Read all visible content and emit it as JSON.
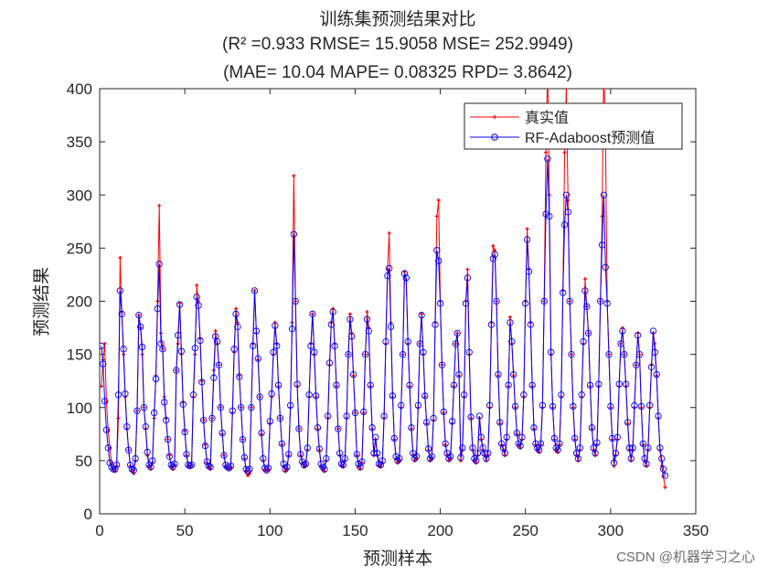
{
  "chart_data": {
    "type": "line",
    "title": [
      "训练集预测结果对比",
      "(R² =0.933 RMSE= 15.9058 MSE= 252.9949)",
      "(MAE= 10.04 MAPE= 0.08325 RPD= 3.8642)"
    ],
    "xlabel": "预测样本",
    "ylabel": "预测结果",
    "xlim": [
      0,
      350
    ],
    "ylim": [
      0,
      400
    ],
    "xticks": [
      0,
      50,
      100,
      150,
      200,
      250,
      300,
      350
    ],
    "yticks": [
      0,
      50,
      100,
      150,
      200,
      250,
      300,
      350,
      400
    ],
    "grid": false,
    "legend_position": "top-right",
    "series": [
      {
        "name": "真实值",
        "color": "#ff0000",
        "marker": "+",
        "values": [
          120,
          145,
          160,
          105,
          78,
          62,
          48,
          42,
          40,
          45,
          90,
          241,
          190,
          150,
          110,
          80,
          60,
          45,
          40,
          38,
          50,
          97,
          187,
          175,
          150,
          100,
          80,
          55,
          45,
          42,
          48,
          90,
          130,
          200,
          290,
          170,
          155,
          110,
          90,
          70,
          55,
          45,
          42,
          46,
          135,
          160,
          198,
          150,
          105,
          78,
          55,
          45,
          44,
          46,
          110,
          150,
          215,
          200,
          165,
          125,
          88,
          65,
          48,
          44,
          42,
          90,
          135,
          172,
          160,
          140,
          100,
          75,
          55,
          45,
          43,
          42,
          44,
          95,
          152,
          193,
          180,
          130,
          100,
          70,
          52,
          40,
          36,
          38,
          100,
          160,
          210,
          170,
          145,
          110,
          75,
          50,
          42,
          40,
          42,
          85,
          110,
          150,
          180,
          160,
          120,
          90,
          65,
          45,
          40,
          42,
          55,
          100,
          180,
          318,
          200,
          120,
          80,
          55,
          48,
          44,
          45,
          60,
          110,
          160,
          188,
          150,
          110,
          80,
          60,
          45,
          42,
          40,
          50,
          90,
          140,
          180,
          193,
          160,
          120,
          80,
          55,
          45,
          44,
          50,
          90,
          150,
          188,
          170,
          130,
          95,
          55,
          45,
          42,
          48,
          95,
          150,
          190,
          175,
          120,
          80,
          55,
          70,
          55,
          45,
          44,
          48,
          90,
          160,
          230,
          264,
          180,
          110,
          70,
          52,
          48,
          50,
          100,
          150,
          228,
          220,
          160,
          120,
          80,
          55,
          50,
          52,
          100,
          160,
          188,
          150,
          110,
          85,
          60,
          50,
          52,
          88,
          180,
          280,
          295,
          200,
          140,
          95,
          65,
          55,
          50,
          52,
          85,
          120,
          160,
          170,
          130,
          50,
          60,
          110,
          200,
          230,
          150,
          90,
          60,
          50,
          48,
          55,
          90,
          70,
          60,
          55,
          50,
          55,
          100,
          180,
          252,
          248,
          200,
          130,
          85,
          65,
          60,
          55,
          70,
          120,
          185,
          160,
          130,
          100,
          75,
          65,
          62,
          70,
          110,
          200,
          268,
          230,
          180,
          120,
          80,
          65,
          60,
          58,
          65,
          100,
          200,
          340,
          420,
          300,
          150,
          100,
          70,
          60,
          58,
          65,
          110,
          210,
          340,
          400,
          295,
          200,
          150,
          100,
          70,
          55,
          50,
          60,
          110,
          160,
          221,
          195,
          170,
          120,
          80,
          60,
          55,
          65,
          120,
          200,
          280,
          420,
          350,
          200,
          150,
          100,
          70,
          45,
          55,
          70,
          120,
          160,
          175,
          150,
          120,
          85,
          60,
          50,
          60,
          100,
          140,
          170,
          150,
          100,
          65,
          50,
          45,
          60,
          100,
          140,
          170,
          160,
          130,
          90,
          60,
          45,
          35,
          25
        ]
      },
      {
        "name": "RF-Adaboost预测值",
        "color": "#0000ff",
        "marker": "o",
        "values": [
          158,
          141,
          106,
          79,
          62,
          48,
          44,
          42,
          42,
          46,
          112,
          210,
          188,
          155,
          113,
          82,
          60,
          46,
          42,
          41,
          52,
          97,
          187,
          176,
          157,
          100,
          82,
          58,
          46,
          44,
          50,
          95,
          127,
          193,
          235,
          160,
          155,
          105,
          88,
          70,
          54,
          46,
          44,
          47,
          135,
          168,
          197,
          153,
          103,
          77,
          56,
          46,
          45,
          46,
          112,
          156,
          204,
          196,
          163,
          124,
          88,
          64,
          49,
          45,
          44,
          90,
          128,
          167,
          162,
          140,
          100,
          76,
          55,
          46,
          44,
          43,
          45,
          97,
          155,
          188,
          176,
          129,
          100,
          70,
          53,
          42,
          40,
          42,
          100,
          158,
          210,
          172,
          146,
          110,
          76,
          52,
          43,
          41,
          43,
          87,
          113,
          152,
          177,
          158,
          121,
          90,
          66,
          47,
          42,
          44,
          56,
          102,
          174,
          263,
          200,
          122,
          80,
          56,
          49,
          46,
          47,
          62,
          112,
          158,
          188,
          152,
          111,
          81,
          61,
          47,
          44,
          42,
          52,
          92,
          142,
          178,
          190,
          158,
          121,
          80,
          57,
          47,
          46,
          52,
          92,
          150,
          183,
          167,
          131,
          95,
          56,
          47,
          44,
          49,
          96,
          150,
          183,
          172,
          121,
          81,
          57,
          72,
          57,
          47,
          46,
          50,
          92,
          162,
          224,
          231,
          176,
          111,
          71,
          54,
          50,
          52,
          102,
          150,
          226,
          222,
          162,
          121,
          81,
          57,
          52,
          54,
          102,
          160,
          187,
          152,
          111,
          86,
          61,
          52,
          54,
          90,
          178,
          248,
          238,
          198,
          140,
          96,
          66,
          57,
          52,
          54,
          87,
          121,
          160,
          170,
          131,
          53,
          62,
          112,
          198,
          222,
          152,
          91,
          62,
          52,
          50,
          57,
          92,
          72,
          62,
          57,
          52,
          57,
          102,
          178,
          240,
          244,
          200,
          131,
          86,
          66,
          62,
          57,
          72,
          121,
          180,
          162,
          131,
          101,
          76,
          66,
          64,
          72,
          112,
          198,
          258,
          228,
          178,
          121,
          81,
          66,
          62,
          60,
          66,
          102,
          200,
          282,
          334,
          280,
          152,
          101,
          71,
          62,
          60,
          66,
          112,
          208,
          272,
          300,
          284,
          200,
          150,
          101,
          71,
          57,
          52,
          62,
          112,
          162,
          210,
          195,
          170,
          121,
          81,
          62,
          57,
          67,
          122,
          200,
          253,
          300,
          232,
          198,
          150,
          101,
          71,
          48,
          57,
          72,
          122,
          160,
          172,
          150,
          122,
          86,
          62,
          52,
          62,
          102,
          140,
          168,
          150,
          101,
          66,
          52,
          47,
          62,
          102,
          138,
          172,
          152,
          131,
          92,
          62,
          52,
          42,
          36
        ]
      }
    ]
  },
  "watermark": "CSDN @机器学习之心"
}
